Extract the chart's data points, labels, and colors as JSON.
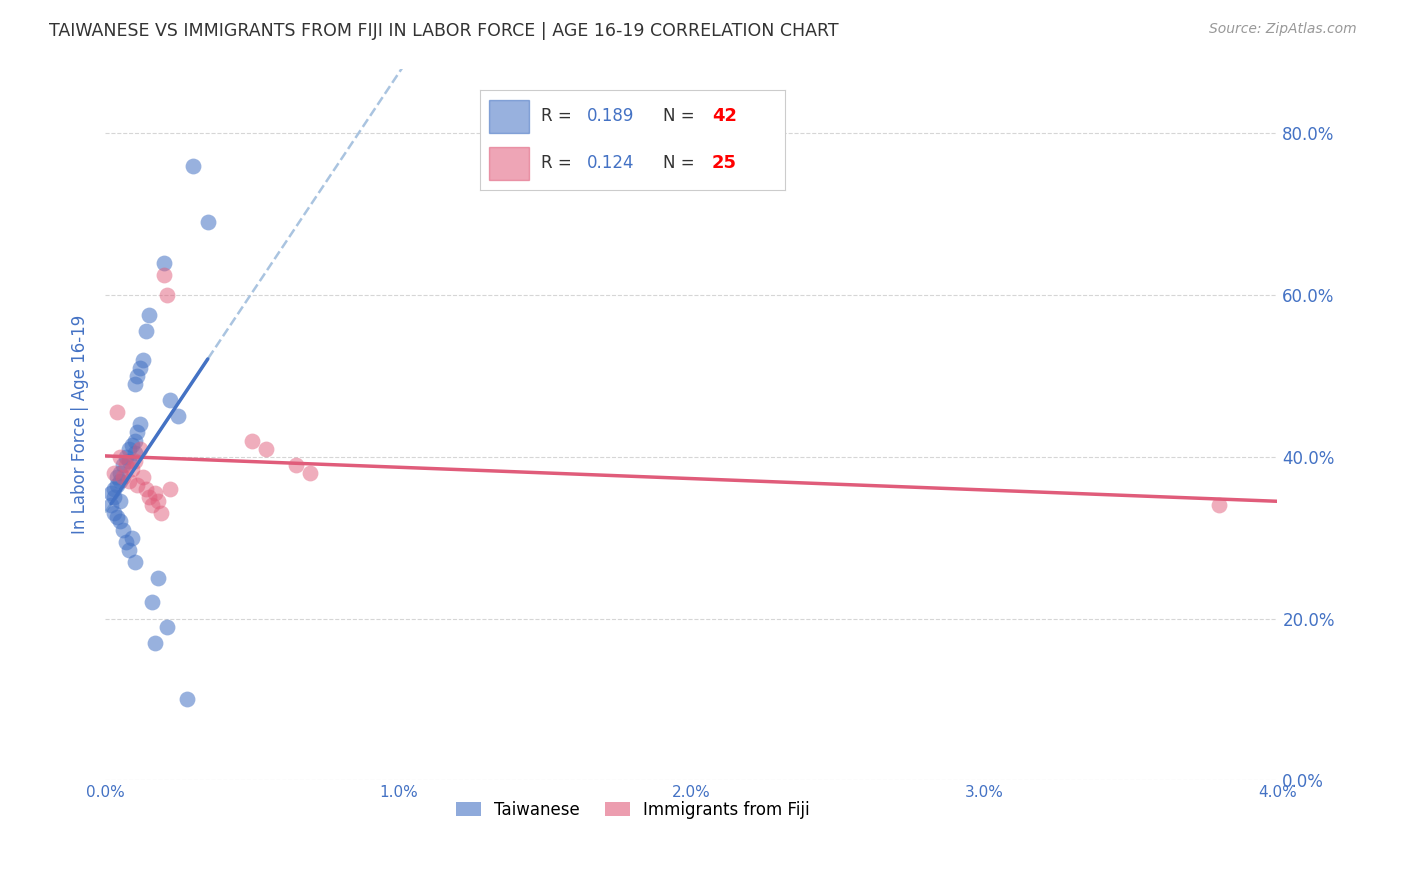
{
  "title": "TAIWANESE VS IMMIGRANTS FROM FIJI IN LABOR FORCE | AGE 16-19 CORRELATION CHART",
  "source": "Source: ZipAtlas.com",
  "ylabel": "In Labor Force | Age 16-19",
  "xlim": [
    0.0,
    0.04
  ],
  "ylim": [
    0.0,
    0.88
  ],
  "xticks": [
    0.0,
    0.01,
    0.02,
    0.03,
    0.04
  ],
  "yticks": [
    0.0,
    0.2,
    0.4,
    0.6,
    0.8
  ],
  "ytick_labels_right": [
    "0.0%",
    "20.0%",
    "40.0%",
    "60.0%",
    "80.0%"
  ],
  "xtick_labels": [
    "0.0%",
    "1.0%",
    "2.0%",
    "3.0%",
    "4.0%"
  ],
  "legend_entries": [
    {
      "label": "Taiwanese",
      "R": "0.189",
      "N": "42",
      "color": "#6baed6"
    },
    {
      "label": "Immigrants from Fiji",
      "R": "0.124",
      "N": "25",
      "color": "#f4a0b5"
    }
  ],
  "taiwanese_x": [
    0.0002,
    0.0002,
    0.0003,
    0.0003,
    0.0003,
    0.0004,
    0.0004,
    0.0004,
    0.0005,
    0.0005,
    0.0005,
    0.0005,
    0.0006,
    0.0006,
    0.0007,
    0.0007,
    0.0008,
    0.0008,
    0.0008,
    0.0009,
    0.0009,
    0.001,
    0.001,
    0.001,
    0.001,
    0.0011,
    0.0011,
    0.0012,
    0.0012,
    0.0013,
    0.0014,
    0.0015,
    0.0016,
    0.0017,
    0.0018,
    0.002,
    0.0021,
    0.0022,
    0.0025,
    0.0028,
    0.003,
    0.0035
  ],
  "taiwanese_y": [
    0.355,
    0.34,
    0.36,
    0.35,
    0.33,
    0.375,
    0.365,
    0.325,
    0.38,
    0.37,
    0.345,
    0.32,
    0.39,
    0.31,
    0.4,
    0.295,
    0.41,
    0.395,
    0.285,
    0.415,
    0.3,
    0.42,
    0.405,
    0.49,
    0.27,
    0.43,
    0.5,
    0.51,
    0.44,
    0.52,
    0.555,
    0.575,
    0.22,
    0.17,
    0.25,
    0.64,
    0.19,
    0.47,
    0.45,
    0.1,
    0.76,
    0.69
  ],
  "fiji_x": [
    0.0003,
    0.0004,
    0.0005,
    0.0006,
    0.0007,
    0.0008,
    0.0009,
    0.001,
    0.0011,
    0.0012,
    0.0013,
    0.0014,
    0.0015,
    0.0016,
    0.0017,
    0.0018,
    0.0019,
    0.002,
    0.0021,
    0.0022,
    0.005,
    0.0055,
    0.0065,
    0.007,
    0.038
  ],
  "fiji_y": [
    0.38,
    0.455,
    0.4,
    0.375,
    0.39,
    0.37,
    0.385,
    0.395,
    0.365,
    0.41,
    0.375,
    0.36,
    0.35,
    0.34,
    0.355,
    0.345,
    0.33,
    0.625,
    0.6,
    0.36,
    0.42,
    0.41,
    0.39,
    0.38,
    0.34
  ],
  "taiwanese_line_color": "#4472c4",
  "fiji_line_color": "#e05c7a",
  "dashed_line_color": "#aac4e0",
  "background_color": "#ffffff",
  "grid_color": "#cccccc",
  "title_color": "#333333",
  "tick_color": "#4472c4"
}
